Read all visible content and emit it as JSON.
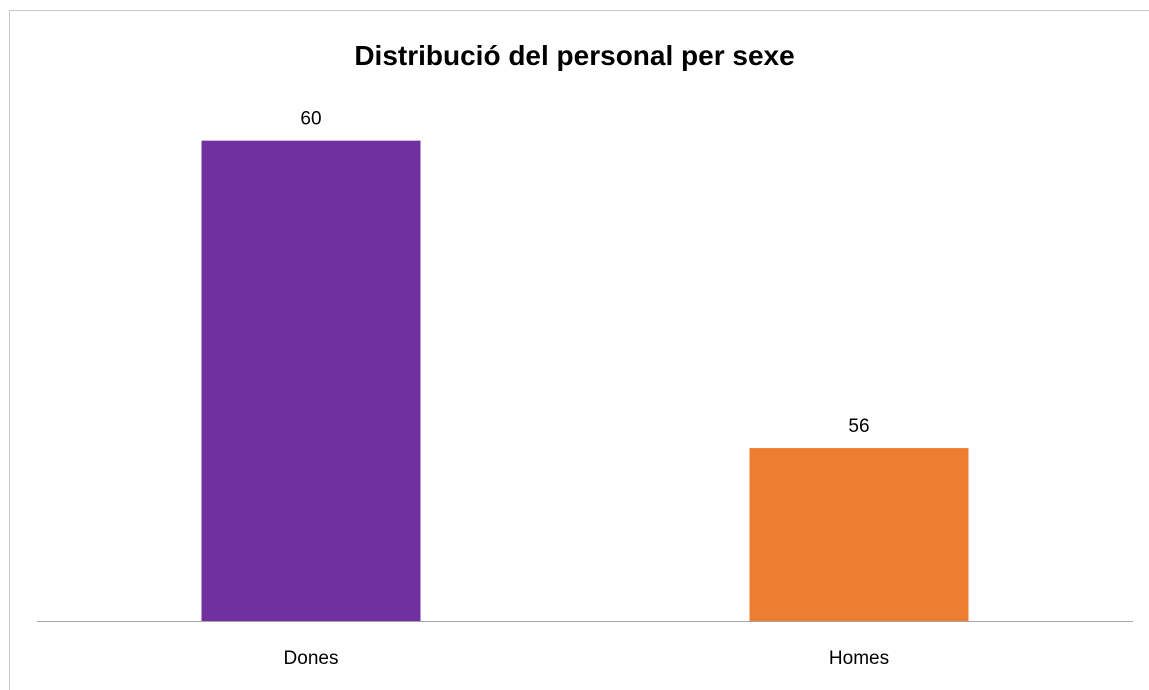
{
  "chart_data": {
    "type": "bar",
    "title": "Distribució del personal per sexe",
    "categories": [
      "Dones",
      "Homes"
    ],
    "values": [
      60,
      56
    ],
    "colors": [
      "#7030a0",
      "#ed7d31"
    ],
    "axis_color": "#a6a6a6",
    "ylim": [
      53.75,
      60.75
    ],
    "grid": false,
    "legend": "none",
    "data_labels": true
  }
}
